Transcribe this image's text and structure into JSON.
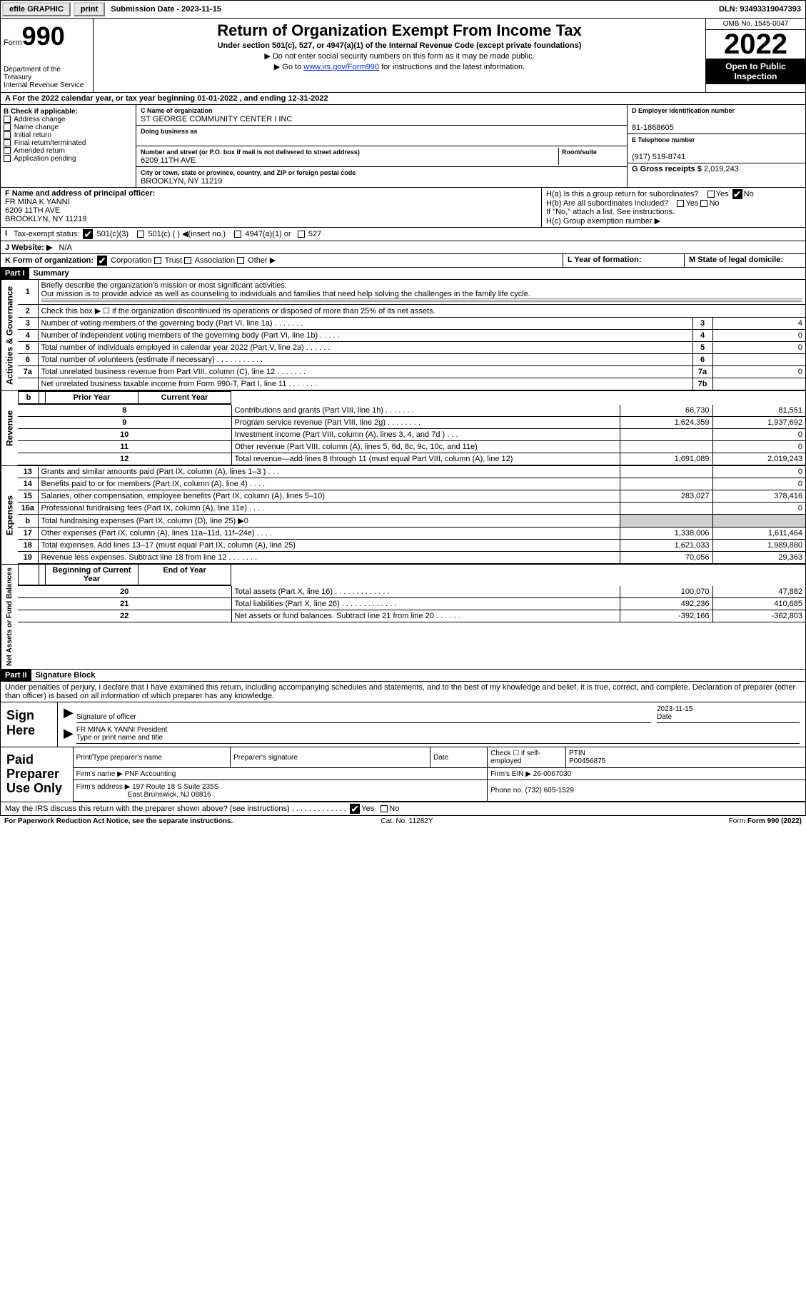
{
  "topbar": {
    "efile": "efile GRAPHIC",
    "print": "print",
    "submission": "Submission Date - 2023-11-15",
    "dln": "DLN: 93493319047393"
  },
  "header": {
    "form_word": "Form",
    "form_num": "990",
    "dept": "Department of the Treasury\nInternal Revenue Service",
    "title": "Return of Organization Exempt From Income Tax",
    "subtitle": "Under section 501(c), 527, or 4947(a)(1) of the Internal Revenue Code (except private foundations)",
    "note1": "▶ Do not enter social security numbers on this form as it may be made public.",
    "note2_pre": "▶ Go to ",
    "note2_link": "www.irs.gov/Form990",
    "note2_post": " for instructions and the latest information.",
    "omb": "OMB No. 1545-0047",
    "year": "2022",
    "inspect": "Open to Public Inspection"
  },
  "lineA": "A For the 2022 calendar year, or tax year beginning 01-01-2022   , and ending 12-31-2022",
  "B": {
    "label": "B Check if applicable:",
    "items": [
      "Address change",
      "Name change",
      "Initial return",
      "Final return/terminated",
      "Amended return",
      "Application pending"
    ]
  },
  "C": {
    "name_lbl": "C Name of organization",
    "name": "ST GEORGE COMMUNITY CENTER I INC",
    "dba_lbl": "Doing business as",
    "dba": "",
    "street_lbl": "Number and street (or P.O. box if mail is not delivered to street address)",
    "room_lbl": "Room/suite",
    "street": "6209 11TH AVE",
    "city_lbl": "City or town, state or province, country, and ZIP or foreign postal code",
    "city": "BROOKLYN, NY  11219"
  },
  "D": {
    "lbl": "D Employer identification number",
    "val": "81-1868605"
  },
  "E": {
    "lbl": "E Telephone number",
    "val": "(917) 519-8741"
  },
  "G": {
    "lbl": "G Gross receipts $",
    "val": "2,019,243"
  },
  "F": {
    "lbl": "F Name and address of principal officer:",
    "name": "FR MINA K YANNI",
    "street": "6209 11TH AVE",
    "city": "BROOKLYN, NY  11219"
  },
  "H": {
    "a": "H(a)  Is this a group return for subordinates?",
    "b": "H(b)  Are all subordinates included?",
    "b_note": "If \"No,\" attach a list. See instructions.",
    "c": "H(c)  Group exemption number ▶"
  },
  "I": {
    "lbl": "Tax-exempt status:",
    "opts": [
      "501(c)(3)",
      "501(c) (  ) ◀(insert no.)",
      "4947(a)(1) or",
      "527"
    ]
  },
  "J": {
    "lbl": "J  Website: ▶",
    "val": "N/A"
  },
  "K": {
    "lbl": "K Form of organization:",
    "opts": [
      "Corporation",
      "Trust",
      "Association",
      "Other ▶"
    ]
  },
  "L": {
    "lbl": "L Year of formation:",
    "val": ""
  },
  "M": {
    "lbl": "M State of legal domicile:",
    "val": ""
  },
  "part1": {
    "hdr": "Part I",
    "title": "Summary",
    "q1": "Briefly describe the organization's mission or most significant activities:",
    "mission": "Our mission is to provide advice as well as counseling to individuals and families that need help solving the challenges in the family life cycle.",
    "q2": "Check this box ▶ ☐ if the organization discontinued its operations or disposed of more than 25% of its net assets.",
    "gov_label": "Activities & Governance",
    "rev_label": "Revenue",
    "exp_label": "Expenses",
    "net_label": "Net Assets or Fund Balances",
    "rows_gov": [
      {
        "n": "3",
        "d": "Number of voting members of the governing body (Part VI, line 1a)  .   .   .   .   .   .   .",
        "b": "3",
        "v": "4"
      },
      {
        "n": "4",
        "d": "Number of independent voting members of the governing body (Part VI, line 1b)  .   .   .   .   .",
        "b": "4",
        "v": "0"
      },
      {
        "n": "5",
        "d": "Total number of individuals employed in calendar year 2022 (Part V, line 2a)  .   .   .   .   .   .",
        "b": "5",
        "v": "0"
      },
      {
        "n": "6",
        "d": "Total number of volunteers (estimate if necessary)   .   .   .   .   .   .   .   .   .   .   .",
        "b": "6",
        "v": ""
      },
      {
        "n": "7a",
        "d": "Total unrelated business revenue from Part VIII, column (C), line 12  .   .   .   .   .   .   .",
        "b": "7a",
        "v": "0"
      },
      {
        "n": "",
        "d": "Net unrelated business taxable income from Form 990-T, Part I, line 11  .   .   .   .   .   .   .",
        "b": "7b",
        "v": ""
      }
    ],
    "col_prior": "Prior Year",
    "col_current": "Current Year",
    "rows_rev": [
      {
        "n": "8",
        "d": "Contributions and grants (Part VIII, line 1h)   .   .   .   .   .   .   .",
        "p": "66,730",
        "c": "81,551"
      },
      {
        "n": "9",
        "d": "Program service revenue (Part VIII, line 2g)  .   .   .   .   .   .   .   .",
        "p": "1,624,359",
        "c": "1,937,692"
      },
      {
        "n": "10",
        "d": "Investment income (Part VIII, column (A), lines 3, 4, and 7d )  .   .   .",
        "p": "",
        "c": "0"
      },
      {
        "n": "11",
        "d": "Other revenue (Part VIII, column (A), lines 5, 6d, 8c, 9c, 10c, and 11e)",
        "p": "",
        "c": "0"
      },
      {
        "n": "12",
        "d": "Total revenue—add lines 8 through 11 (must equal Part VIII, column (A), line 12)",
        "p": "1,691,089",
        "c": "2,019,243"
      }
    ],
    "rows_exp": [
      {
        "n": "13",
        "d": "Grants and similar amounts paid (Part IX, column (A), lines 1–3 )  .   .   .",
        "p": "",
        "c": "0"
      },
      {
        "n": "14",
        "d": "Benefits paid to or for members (Part IX, column (A), line 4)  .   .   .   .",
        "p": "",
        "c": "0"
      },
      {
        "n": "15",
        "d": "Salaries, other compensation, employee benefits (Part IX, column (A), lines 5–10)",
        "p": "283,027",
        "c": "378,416"
      },
      {
        "n": "16a",
        "d": "Professional fundraising fees (Part IX, column (A), line 11e)  .   .   .   .",
        "p": "",
        "c": "0"
      },
      {
        "n": "b",
        "d": "Total fundraising expenses (Part IX, column (D), line 25) ▶0",
        "p": "shade",
        "c": "shade"
      },
      {
        "n": "17",
        "d": "Other expenses (Part IX, column (A), lines 11a–11d, 11f–24e)  .   .   .   .",
        "p": "1,338,006",
        "c": "1,611,464"
      },
      {
        "n": "18",
        "d": "Total expenses. Add lines 13–17 (must equal Part IX, column (A), line 25)",
        "p": "1,621,033",
        "c": "1,989,880"
      },
      {
        "n": "19",
        "d": "Revenue less expenses. Subtract line 18 from line 12 .   .   .   .   .   .   .",
        "p": "70,056",
        "c": "29,363"
      }
    ],
    "col_begin": "Beginning of Current Year",
    "col_end": "End of Year",
    "rows_net": [
      {
        "n": "20",
        "d": "Total assets (Part X, line 16)  .   .   .   .   .   .   .   .   .   .   .   .   .",
        "p": "100,070",
        "c": "47,882"
      },
      {
        "n": "21",
        "d": "Total liabilities (Part X, line 26) .   .   .   .   .   .   .   .   .   .   .   .   .",
        "p": "492,236",
        "c": "410,685"
      },
      {
        "n": "22",
        "d": "Net assets or fund balances. Subtract line 21 from line 20 .   .   .   .   .   .",
        "p": "-392,166",
        "c": "-362,803"
      }
    ]
  },
  "part2": {
    "hdr": "Part II",
    "title": "Signature Block",
    "decl": "Under penalties of perjury, I declare that I have examined this return, including accompanying schedules and statements, and to the best of my knowledge and belief, it is true, correct, and complete. Declaration of preparer (other than officer) is based on all information of which preparer has any knowledge.",
    "sign_here": "Sign Here",
    "sig_officer": "Signature of officer",
    "sig_date": "2023-11-15",
    "date_lbl": "Date",
    "officer_name": "FR MINA K YANNI  President",
    "type_name": "Type or print name and title"
  },
  "prep": {
    "label": "Paid Preparer Use Only",
    "h": [
      "Print/Type preparer's name",
      "Preparer's signature",
      "Date",
      "Check ☐ if self-employed",
      "PTIN"
    ],
    "ptin": "P00456875",
    "firm_lbl": "Firm's name    ▶",
    "firm": "PNF Accounting",
    "ein_lbl": "Firm's EIN ▶",
    "ein": "26-0067030",
    "addr_lbl": "Firm's address ▶",
    "addr1": "197 Route 18 S Suite 235S",
    "addr2": "East Brunswick, NJ  08816",
    "phone_lbl": "Phone no.",
    "phone": "(732) 605-1529"
  },
  "discuss": "May the IRS discuss this return with the preparer shown above? (see instructions)   .   .   .   .   .   .   .   .   .   .   .   .   .",
  "footer": {
    "left": "For Paperwork Reduction Act Notice, see the separate instructions.",
    "mid": "Cat. No. 11282Y",
    "right": "Form 990 (2022)"
  }
}
